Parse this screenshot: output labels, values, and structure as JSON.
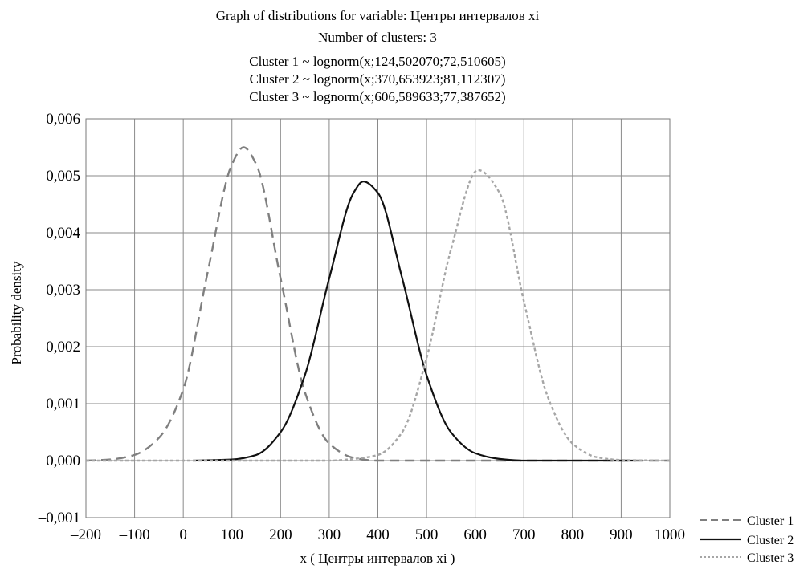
{
  "chart_data": {
    "type": "line",
    "title": "Graph of distributions for variable: Центры интервалов xi",
    "subtitle": "Number of clusters: 3",
    "annotations": [
      "Cluster 1 ~ lognorm(x;124,502070;72,510605)",
      "Cluster 2 ~ lognorm(x;370,653923;81,112307)",
      "Cluster 3 ~ lognorm(x;606,589633;77,387652)"
    ],
    "xlabel": "x ( Центры интервалов xi )",
    "ylabel": "Probability density",
    "xlim": [
      -200,
      1000
    ],
    "ylim": [
      -0.001,
      0.006
    ],
    "x_ticks": [
      -200,
      -100,
      0,
      100,
      200,
      300,
      400,
      500,
      600,
      700,
      800,
      900,
      1000
    ],
    "x_tick_labels": [
      "–200",
      "–100",
      "0",
      "100",
      "200",
      "300",
      "400",
      "500",
      "600",
      "700",
      "800",
      "900",
      "1000"
    ],
    "y_ticks": [
      -0.001,
      0,
      0.001,
      0.002,
      0.003,
      0.004,
      0.005,
      0.006
    ],
    "y_tick_labels": [
      "–0,001",
      "0,000",
      "0,001",
      "0,002",
      "0,003",
      "0,004",
      "0,005",
      "0,006"
    ],
    "grid": true,
    "legend": "bottom-right",
    "series": [
      {
        "name": "Cluster 1",
        "color": "#7f7f7f",
        "dash": "dashed",
        "x": [
          -200,
          -150,
          -100,
          -50,
          0,
          50,
          100,
          124,
          150,
          200,
          250,
          300,
          350,
          400,
          500,
          600,
          700,
          800,
          900,
          1000
        ],
        "values": [
          0.0,
          2e-05,
          0.0001,
          0.0004,
          0.00125,
          0.0033,
          0.0052,
          0.0055,
          0.0052,
          0.0032,
          0.0012,
          0.0003,
          5e-05,
          0.0,
          0.0,
          0.0,
          0.0,
          0.0,
          0.0,
          0.0
        ]
      },
      {
        "name": "Cluster 2",
        "color": "#111111",
        "dash": "solid",
        "x": [
          20,
          100,
          150,
          200,
          250,
          300,
          350,
          370,
          400,
          450,
          500,
          550,
          600,
          650,
          700,
          800,
          900,
          930
        ],
        "values": [
          0.0,
          2e-05,
          0.0001,
          0.0005,
          0.0015,
          0.0032,
          0.0047,
          0.0049,
          0.0047,
          0.0032,
          0.0015,
          0.0005,
          0.00013,
          3e-05,
          0.0,
          0.0,
          0.0,
          0.0
        ]
      },
      {
        "name": "Cluster 3",
        "color": "#a6a6a6",
        "dash": "dotted",
        "x": [
          -200,
          200,
          300,
          350,
          400,
          450,
          500,
          550,
          606,
          650,
          700,
          750,
          800,
          850,
          900,
          1000
        ],
        "values": [
          0.0,
          0.0,
          0.0,
          3e-05,
          0.0001,
          0.0005,
          0.0018,
          0.0037,
          0.0051,
          0.0047,
          0.0028,
          0.0011,
          0.0003,
          6e-05,
          1e-05,
          0.0
        ]
      }
    ]
  }
}
